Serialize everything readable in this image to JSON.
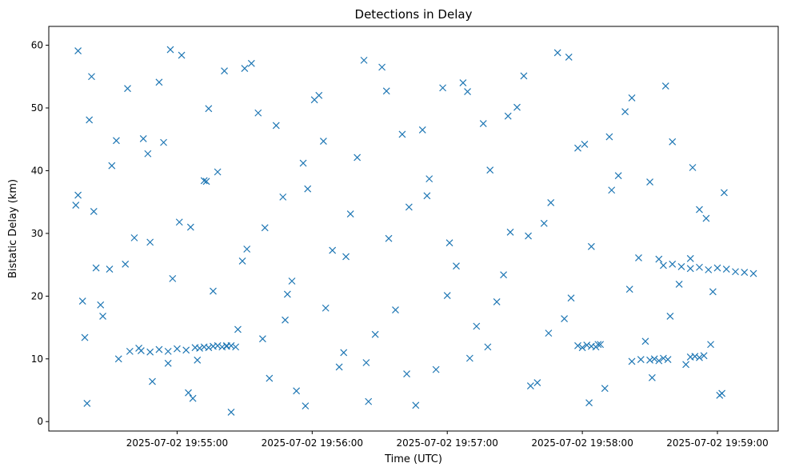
{
  "chart_data": {
    "type": "scatter",
    "title": "Detections in Delay",
    "xlabel": "Time (UTC)",
    "ylabel": "Bistatic Delay (km)",
    "x_ticks": [
      "2025-07-02 19:55:00",
      "2025-07-02 19:56:00",
      "2025-07-02 19:57:00",
      "2025-07-02 19:58:00",
      "2025-07-02 19:59:00"
    ],
    "y_ticks": [
      "0",
      "10",
      "20",
      "30",
      "40",
      "50",
      "60"
    ],
    "xlim": [
      "2025-07-02 19:54:03",
      "2025-07-02 19:59:27"
    ],
    "ylim": [
      -1.5,
      63
    ],
    "marker": "x",
    "color": "#1f77b4",
    "grid": false,
    "legend": null,
    "series": [
      {
        "x": [
          "2025-07-02 19:54:16",
          "2025-07-02 19:54:16",
          "2025-07-02 19:54:18",
          "2025-07-02 19:54:19",
          "2025-07-02 19:54:20",
          "2025-07-02 19:54:22",
          "2025-07-02 19:54:23",
          "2025-07-02 19:54:26",
          "2025-07-02 19:54:30",
          "2025-07-02 19:54:34",
          "2025-07-02 19:54:38",
          "2025-07-02 19:54:41",
          "2025-07-02 19:54:45",
          "2025-07-02 19:54:49",
          "2025-07-02 19:54:54",
          "2025-07-02 19:54:58",
          "2025-07-02 19:55:02",
          "2025-07-02 19:55:06",
          "2025-07-02 19:55:09",
          "2025-07-02 19:55:14",
          "2025-07-02 19:55:18",
          "2025-07-02 19:55:24",
          "2025-07-02 19:55:29",
          "2025-07-02 19:55:33",
          "2025-07-02 19:55:38",
          "2025-07-02 19:55:44",
          "2025-07-02 19:55:49",
          "2025-07-02 19:55:53",
          "2025-07-02 19:55:58",
          "2025-07-02 19:56:03",
          "2025-07-02 19:56:09",
          "2025-07-02 19:56:14",
          "2025-07-02 19:56:20",
          "2025-07-02 19:56:25",
          "2025-07-02 19:56:31",
          "2025-07-02 19:56:37",
          "2025-07-02 19:56:43",
          "2025-07-02 19:56:49",
          "2025-07-02 19:56:55",
          "2025-07-02 19:57:01",
          "2025-07-02 19:57:07",
          "2025-07-02 19:57:13",
          "2025-07-02 19:57:19",
          "2025-07-02 19:57:25",
          "2025-07-02 19:57:31",
          "2025-07-02 19:57:37",
          "2025-07-02 19:57:43",
          "2025-07-02 19:57:49",
          "2025-07-02 19:57:55",
          "2025-07-02 19:58:01",
          "2025-07-02 19:58:07",
          "2025-07-02 19:58:13",
          "2025-07-02 19:58:19",
          "2025-07-02 19:58:25",
          "2025-07-02 19:58:31",
          "2025-07-02 19:58:37",
          "2025-07-02 19:58:43",
          "2025-07-02 19:58:49",
          "2025-07-02 19:58:55",
          "2025-07-02 19:59:01",
          "2025-07-02 19:54:15",
          "2025-07-02 19:54:21",
          "2025-07-02 19:54:27",
          "2025-07-02 19:54:33",
          "2025-07-02 19:54:37",
          "2025-07-02 19:54:43",
          "2025-07-02 19:54:47",
          "2025-07-02 19:54:52",
          "2025-07-02 19:54:56",
          "2025-07-02 19:55:01",
          "2025-07-02 19:55:07",
          "2025-07-02 19:55:12",
          "2025-07-02 19:55:16",
          "2025-07-02 19:55:21",
          "2025-07-02 19:55:27",
          "2025-07-02 19:55:31",
          "2025-07-02 19:55:36",
          "2025-07-02 19:55:41",
          "2025-07-02 19:55:47",
          "2025-07-02 19:55:51",
          "2025-07-02 19:55:56",
          "2025-07-02 19:56:01",
          "2025-07-02 19:56:06",
          "2025-07-02 19:56:12",
          "2025-07-02 19:56:17",
          "2025-07-02 19:56:23",
          "2025-07-02 19:56:28",
          "2025-07-02 19:56:34",
          "2025-07-02 19:56:40",
          "2025-07-02 19:56:46",
          "2025-07-02 19:56:52",
          "2025-07-02 19:56:58",
          "2025-07-02 19:57:04",
          "2025-07-02 19:57:10",
          "2025-07-02 19:57:16",
          "2025-07-02 19:57:22",
          "2025-07-02 19:57:28",
          "2025-07-02 19:57:34",
          "2025-07-02 19:57:40",
          "2025-07-02 19:57:46",
          "2025-07-02 19:57:52",
          "2025-07-02 19:57:58",
          "2025-07-02 19:58:04",
          "2025-07-02 19:58:10",
          "2025-07-02 19:58:16",
          "2025-07-02 19:58:22",
          "2025-07-02 19:58:28",
          "2025-07-02 19:58:34",
          "2025-07-02 19:58:40",
          "2025-07-02 19:58:46",
          "2025-07-02 19:58:52",
          "2025-07-02 19:58:58",
          "2025-07-02 19:59:03",
          "2025-07-02 19:54:24",
          "2025-07-02 19:54:31",
          "2025-07-02 19:54:39",
          "2025-07-02 19:54:48",
          "2025-07-02 19:54:57",
          "2025-07-02 19:55:05",
          "2025-07-02 19:55:13",
          "2025-07-02 19:55:22",
          "2025-07-02 19:55:30",
          "2025-07-02 19:55:39",
          "2025-07-02 19:55:48",
          "2025-07-02 19:55:57",
          "2025-07-02 19:56:05",
          "2025-07-02 19:56:15",
          "2025-07-02 19:56:24",
          "2025-07-02 19:56:33",
          "2025-07-02 19:56:42",
          "2025-07-02 19:56:51",
          "2025-07-02 19:57:00",
          "2025-07-02 19:57:09",
          "2025-07-02 19:57:18",
          "2025-07-02 19:57:27",
          "2025-07-02 19:57:36",
          "2025-07-02 19:57:45",
          "2025-07-02 19:57:54",
          "2025-07-02 19:58:03",
          "2025-07-02 19:58:12",
          "2025-07-02 19:58:21",
          "2025-07-02 19:58:30",
          "2025-07-02 19:58:39",
          "2025-07-02 19:58:48",
          "2025-07-02 19:58:57",
          "2025-07-02 19:59:02",
          "2025-07-02 19:54:44",
          "2025-07-02 19:54:48",
          "2025-07-02 19:54:52",
          "2025-07-02 19:54:56",
          "2025-07-02 19:55:00",
          "2025-07-02 19:55:04",
          "2025-07-02 19:55:08",
          "2025-07-02 19:55:10",
          "2025-07-02 19:55:12",
          "2025-07-02 19:55:14",
          "2025-07-02 19:55:16",
          "2025-07-02 19:55:18",
          "2025-07-02 19:55:20",
          "2025-07-02 19:55:22",
          "2025-07-02 19:55:24",
          "2025-07-02 19:55:26",
          "2025-07-02 19:57:58",
          "2025-07-02 19:58:00",
          "2025-07-02 19:58:02",
          "2025-07-02 19:58:04",
          "2025-07-02 19:58:06",
          "2025-07-02 19:58:08",
          "2025-07-02 19:58:22",
          "2025-07-02 19:58:26",
          "2025-07-02 19:58:30",
          "2025-07-02 19:58:32",
          "2025-07-02 19:58:34",
          "2025-07-02 19:58:36",
          "2025-07-02 19:58:38",
          "2025-07-02 19:58:48",
          "2025-07-02 19:58:50",
          "2025-07-02 19:58:52",
          "2025-07-02 19:58:54",
          "2025-07-02 19:58:36",
          "2025-07-02 19:58:40",
          "2025-07-02 19:58:44",
          "2025-07-02 19:58:48",
          "2025-07-02 19:58:52",
          "2025-07-02 19:58:56",
          "2025-07-02 19:59:00",
          "2025-07-02 19:59:04",
          "2025-07-02 19:59:08",
          "2025-07-02 19:59:12",
          "2025-07-02 19:59:16"
        ],
        "y": [
          59.1,
          36.1,
          19.2,
          13.4,
          2.9,
          55.0,
          33.5,
          18.6,
          24.3,
          10.0,
          53.1,
          29.3,
          45.1,
          6.4,
          44.5,
          22.8,
          58.4,
          31.0,
          9.8,
          49.9,
          39.8,
          1.5,
          25.6,
          57.1,
          13.2,
          47.2,
          20.3,
          4.9,
          37.1,
          52.0,
          27.3,
          11.0,
          42.1,
          3.2,
          56.5,
          17.8,
          34.2,
          46.5,
          8.3,
          28.5,
          54.0,
          15.2,
          40.1,
          23.4,
          50.1,
          5.7,
          31.6,
          58.8,
          19.7,
          44.2,
          12.3,
          36.9,
          49.4,
          26.1,
          7.0,
          53.5,
          21.9,
          40.5,
          32.4,
          4.2,
          34.5,
          48.1,
          16.8,
          44.8,
          25.1,
          11.7,
          42.7,
          54.1,
          9.3,
          31.8,
          3.7,
          38.4,
          20.8,
          55.9,
          14.7,
          27.5,
          49.2,
          6.9,
          35.8,
          22.4,
          41.2,
          51.3,
          18.1,
          8.7,
          33.1,
          57.6,
          13.9,
          29.2,
          45.8,
          2.6,
          38.7,
          53.2,
          24.8,
          10.1,
          47.5,
          19.1,
          30.2,
          55.1,
          6.2,
          34.9,
          16.4,
          43.6,
          27.9,
          5.3,
          39.2,
          51.6,
          12.8,
          25.9,
          44.6,
          9.1,
          33.8,
          20.7,
          36.5,
          24.5,
          40.8,
          11.2,
          28.6,
          59.3,
          4.6,
          38.3,
          12.1,
          56.3,
          30.9,
          16.2,
          2.5,
          44.7,
          26.3,
          9.4,
          52.7,
          7.6,
          36.0,
          20.1,
          52.6,
          11.9,
          48.7,
          29.6,
          14.1,
          58.1,
          3.0,
          45.4,
          21.1,
          38.2,
          16.8,
          26.0,
          12.3,
          4.5,
          11.3,
          11.1,
          11.5,
          11.2,
          11.6,
          11.4,
          11.8,
          11.7,
          11.9,
          11.8,
          12.0,
          12.1,
          11.9,
          12.0,
          12.1,
          11.9,
          12.1,
          11.8,
          12.2,
          12.0,
          11.9,
          12.3,
          9.6,
          9.9,
          9.8,
          10.0,
          9.7,
          10.1,
          9.9,
          10.3,
          10.4,
          10.2,
          10.5,
          24.9,
          25.1,
          24.7,
          24.4,
          24.6,
          24.2,
          24.5,
          24.3,
          23.9,
          23.8,
          23.6
        ]
      }
    ]
  }
}
